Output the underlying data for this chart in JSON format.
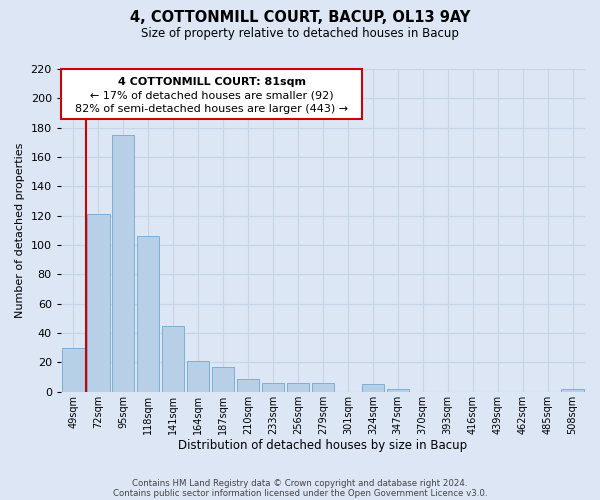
{
  "title": "4, COTTONMILL COURT, BACUP, OL13 9AY",
  "subtitle": "Size of property relative to detached houses in Bacup",
  "xlabel": "Distribution of detached houses by size in Bacup",
  "ylabel": "Number of detached properties",
  "bar_labels": [
    "49sqm",
    "72sqm",
    "95sqm",
    "118sqm",
    "141sqm",
    "164sqm",
    "187sqm",
    "210sqm",
    "233sqm",
    "256sqm",
    "279sqm",
    "301sqm",
    "324sqm",
    "347sqm",
    "370sqm",
    "393sqm",
    "416sqm",
    "439sqm",
    "462sqm",
    "485sqm",
    "508sqm"
  ],
  "bar_values": [
    30,
    121,
    175,
    106,
    45,
    21,
    17,
    9,
    6,
    6,
    6,
    0,
    5,
    2,
    0,
    0,
    0,
    0,
    0,
    0,
    2
  ],
  "bar_color": "#b8cfe8",
  "bar_edge_color": "#7bafd4",
  "vline_color": "#cc0000",
  "ylim": [
    0,
    220
  ],
  "yticks": [
    0,
    20,
    40,
    60,
    80,
    100,
    120,
    140,
    160,
    180,
    200,
    220
  ],
  "annotation_title": "4 COTTONMILL COURT: 81sqm",
  "annotation_line1": "← 17% of detached houses are smaller (92)",
  "annotation_line2": "82% of semi-detached houses are larger (443) →",
  "annotation_box_color": "#ffffff",
  "annotation_box_edge": "#cc0000",
  "footer_line1": "Contains HM Land Registry data © Crown copyright and database right 2024.",
  "footer_line2": "Contains public sector information licensed under the Open Government Licence v3.0.",
  "grid_color": "#c8d4e8",
  "background_color": "#dce6f5"
}
